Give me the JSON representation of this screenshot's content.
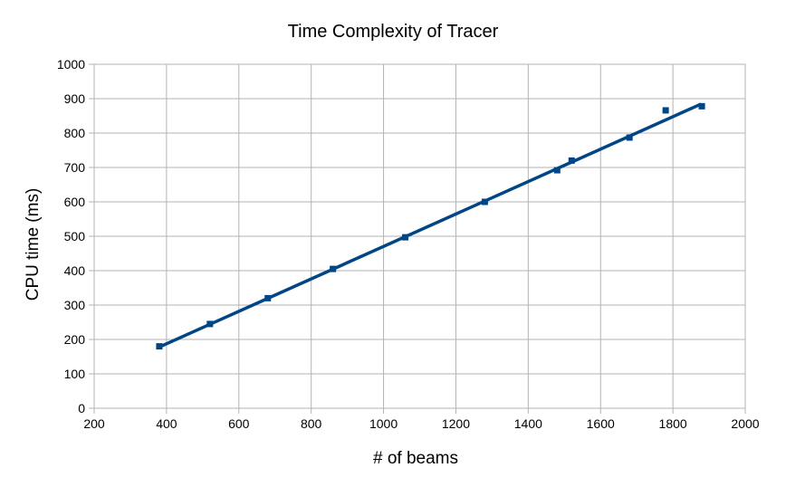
{
  "chart_data": {
    "type": "scatter",
    "title": "Time Complexity of Tracer",
    "xlabel": "# of beams",
    "ylabel": "CPU time (ms)",
    "xlim": [
      200,
      2000
    ],
    "ylim": [
      0,
      1000
    ],
    "x_ticks": [
      200,
      400,
      600,
      800,
      1000,
      1200,
      1400,
      1600,
      1800,
      2000
    ],
    "y_ticks": [
      0,
      100,
      200,
      300,
      400,
      500,
      600,
      700,
      800,
      900,
      1000
    ],
    "grid": true,
    "legend": "none",
    "series": [
      {
        "marker": "square",
        "color": "#004586",
        "x": [
          380,
          520,
          680,
          860,
          1060,
          1280,
          1480,
          1520,
          1680,
          1780,
          1880
        ],
        "y": [
          180,
          245,
          320,
          405,
          497,
          600,
          692,
          720,
          787,
          866,
          878
        ]
      }
    ],
    "trendline": {
      "type": "linear",
      "color": "#004586",
      "x": [
        380,
        1875
      ],
      "y": [
        178,
        883
      ]
    }
  }
}
